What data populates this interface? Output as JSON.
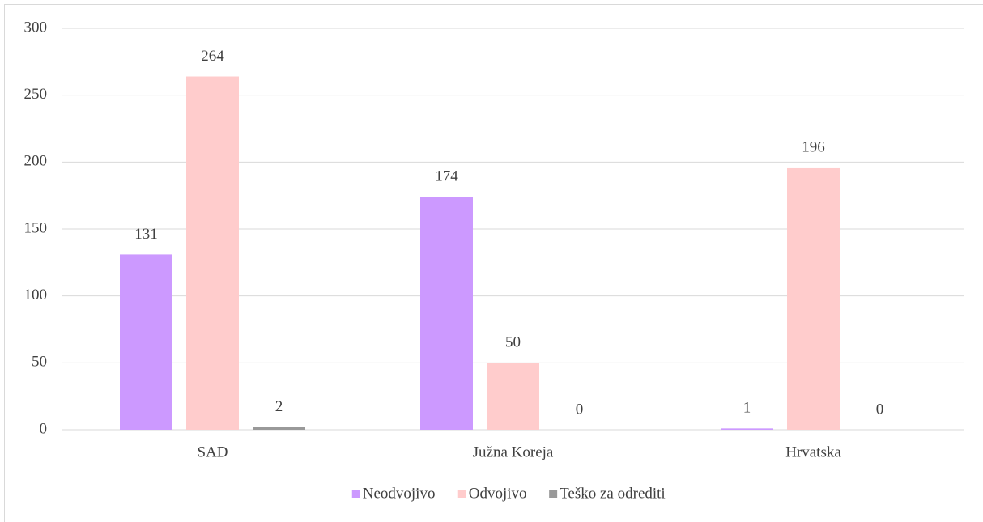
{
  "chart_data": {
    "type": "bar",
    "categories": [
      "SAD",
      "Južna Koreja",
      "Hrvatska"
    ],
    "series": [
      {
        "name": "Neodvojivo",
        "color": "#cc99ff",
        "values": [
          131,
          174,
          1
        ]
      },
      {
        "name": "Odvojivo",
        "color": "#ffcccc",
        "values": [
          264,
          50,
          196
        ]
      },
      {
        "name": "Teško za odrediti",
        "color": "#999999",
        "values": [
          2,
          0,
          0
        ]
      }
    ],
    "ylim": [
      0,
      300
    ],
    "yticks": [
      0,
      50,
      100,
      150,
      200,
      250,
      300
    ],
    "grid": true,
    "legend": "bottom"
  }
}
